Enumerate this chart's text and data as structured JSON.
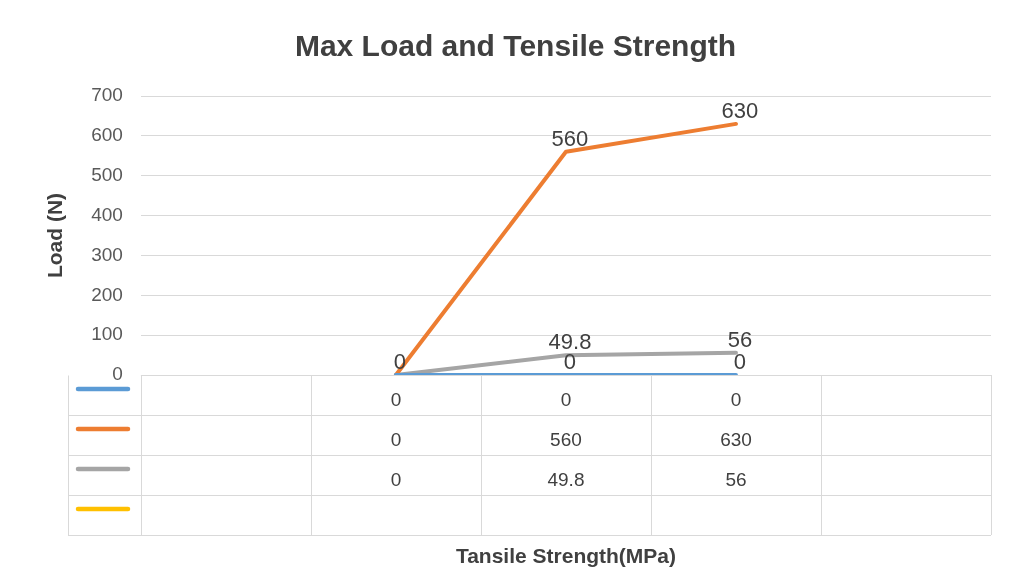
{
  "chart_data": {
    "type": "line",
    "title": "Max Load and Tensile Strength",
    "ylabel": "Load (N)",
    "annotations": [
      "Tansile Strength(MPa)",
      {
        "text": "0",
        "y": 0
      },
      {
        "text": "0",
        "y": 0
      },
      {
        "text": "0",
        "y": 0
      },
      {
        "text": "560",
        "y": 560
      },
      {
        "text": "630",
        "y": 630
      },
      {
        "text": "49.8",
        "y": 49.8
      },
      {
        "text": "56",
        "y": 56
      }
    ],
    "categories": [
      null,
      null,
      null,
      null,
      null
    ],
    "series": [
      {
        "color": "#5b9bd5",
        "values": [
          null,
          0,
          0,
          0,
          null
        ]
      },
      {
        "color": "#ed7d31",
        "values": [
          null,
          0,
          560,
          630,
          null
        ]
      },
      {
        "color": "#a5a5a5",
        "values": [
          null,
          0,
          49.8,
          56,
          null
        ]
      },
      {
        "color": "#ffc000",
        "values": [
          null,
          null,
          null,
          null,
          null
        ]
      }
    ],
    "ylim": [
      0,
      700
    ],
    "yticks": [
      0,
      100,
      200,
      300,
      400,
      500,
      600,
      700
    ],
    "grid": "y",
    "legend": false,
    "marker": "none",
    "line_style": "solid",
    "data_labels": true
  }
}
